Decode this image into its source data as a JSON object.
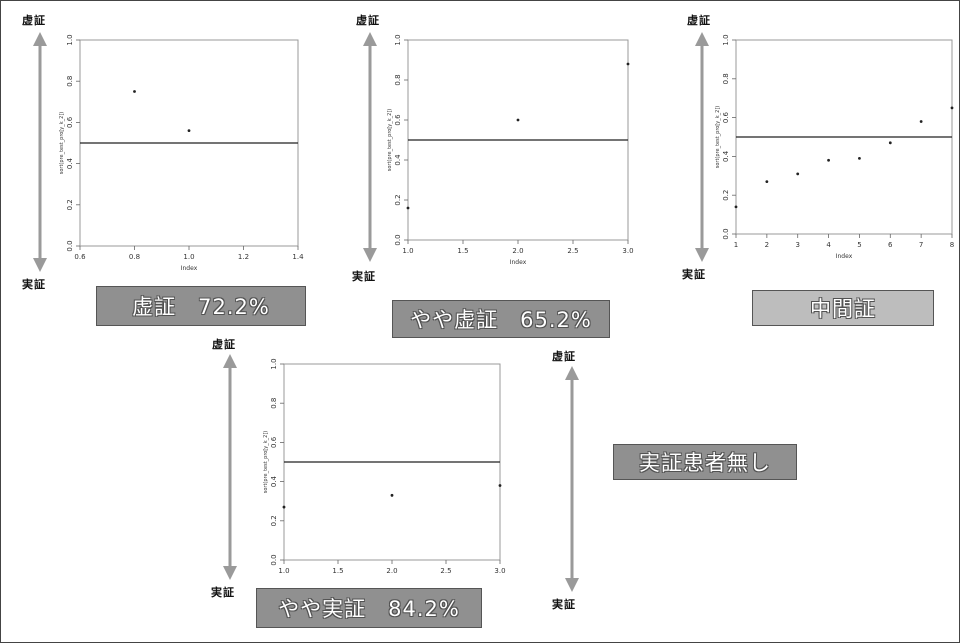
{
  "labels": {
    "top": "虚証",
    "bottom": "実証"
  },
  "badges": {
    "p1": "虚証　72.2%",
    "p2": "やや虚証　65.2%",
    "p3": "中間証",
    "p4": "やや実証　84.2%",
    "none": "実証患者無し"
  },
  "colors": {
    "arrow": "#9a9a9a",
    "badge_dark": "#909090",
    "badge_light": "#bdbdbd"
  },
  "chart_data": [
    {
      "type": "scatter",
      "xlabel": "Index",
      "ylabel": "sort(pre_test_pro[y_k_2])",
      "xlim": [
        0.6,
        1.4
      ],
      "ylim": [
        0,
        1
      ],
      "xticks": [
        "0.6",
        "0.8",
        "1.0",
        "1.2",
        "1.4"
      ],
      "yticks": [
        "0.0",
        "0.2",
        "0.4",
        "0.6",
        "0.8",
        "1.0"
      ],
      "points": [
        {
          "x": 0.8,
          "y": 0.75
        },
        {
          "x": 1.0,
          "y": 0.56
        }
      ],
      "hline": 0.5
    },
    {
      "type": "scatter",
      "xlabel": "Index",
      "ylabel": "sort(pre_test_pro[y_k_2])",
      "xlim": [
        1,
        3
      ],
      "ylim": [
        0,
        1
      ],
      "xticks": [
        "1.0",
        "1.5",
        "2.0",
        "2.5",
        "3.0"
      ],
      "yticks": [
        "0.0",
        "0.2",
        "0.4",
        "0.6",
        "0.8",
        "1.0"
      ],
      "points": [
        {
          "x": 1,
          "y": 0.16
        },
        {
          "x": 2,
          "y": 0.6
        },
        {
          "x": 3,
          "y": 0.88
        }
      ],
      "hline": 0.5
    },
    {
      "type": "scatter",
      "xlabel": "Index",
      "ylabel": "sort(pre_test_pro[y_k_2])",
      "xlim": [
        1,
        8
      ],
      "ylim": [
        0,
        1
      ],
      "xticks": [
        "1",
        "2",
        "3",
        "4",
        "5",
        "6",
        "7",
        "8"
      ],
      "yticks": [
        "0.0",
        "0.2",
        "0.4",
        "0.6",
        "0.8",
        "1.0"
      ],
      "points": [
        {
          "x": 1,
          "y": 0.14
        },
        {
          "x": 2,
          "y": 0.27
        },
        {
          "x": 3,
          "y": 0.31
        },
        {
          "x": 4,
          "y": 0.38
        },
        {
          "x": 5,
          "y": 0.39
        },
        {
          "x": 6,
          "y": 0.47
        },
        {
          "x": 7,
          "y": 0.58
        },
        {
          "x": 8,
          "y": 0.65
        }
      ],
      "hline": 0.5
    },
    {
      "type": "scatter",
      "xlabel": "",
      "ylabel": "sort(pre_test_pro[y_k_2])",
      "xlim": [
        1,
        3
      ],
      "ylim": [
        0,
        1
      ],
      "xticks": [
        "1.0",
        "1.5",
        "2.0",
        "2.5",
        "3.0"
      ],
      "yticks": [
        "0.0",
        "0.2",
        "0.4",
        "0.6",
        "0.8",
        "1.0"
      ],
      "points": [
        {
          "x": 1,
          "y": 0.27
        },
        {
          "x": 2,
          "y": 0.33
        },
        {
          "x": 3,
          "y": 0.38
        }
      ],
      "hline": 0.5
    }
  ]
}
